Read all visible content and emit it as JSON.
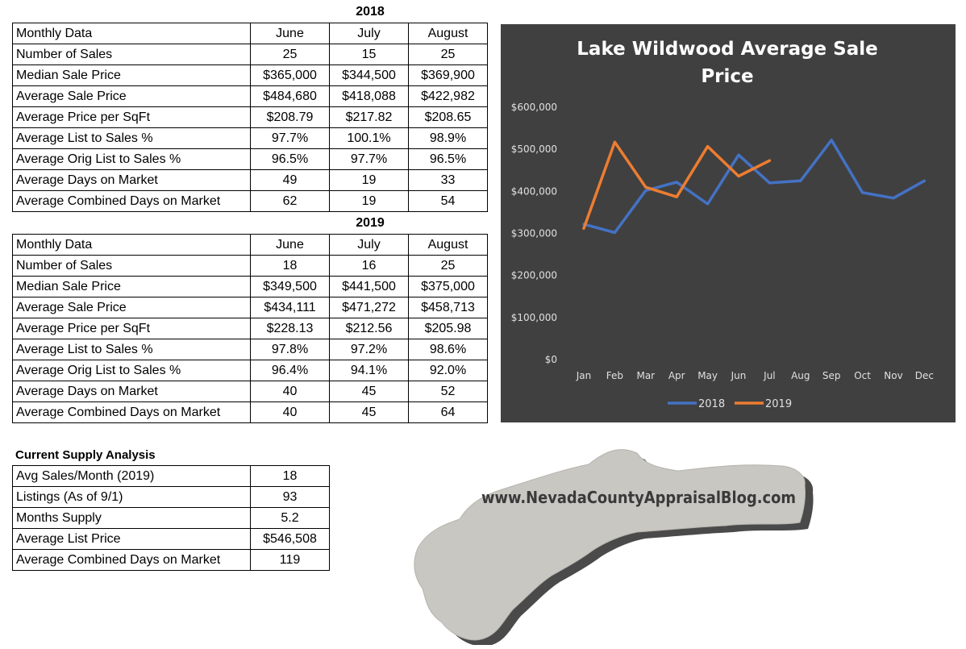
{
  "tables": {
    "t2018": {
      "year": "2018",
      "headers": [
        "Monthly Data",
        "June",
        "July",
        "August"
      ],
      "rows": [
        [
          "Number of Sales",
          "25",
          "15",
          "25"
        ],
        [
          "Median Sale Price",
          "$365,000",
          "$344,500",
          "$369,900"
        ],
        [
          "Average Sale Price",
          "$484,680",
          "$418,088",
          "$422,982"
        ],
        [
          "Average Price per SqFt",
          "$208.79",
          "$217.82",
          "$208.65"
        ],
        [
          "Average List to Sales %",
          "97.7%",
          "100.1%",
          "98.9%"
        ],
        [
          "Average Orig List to Sales %",
          "96.5%",
          "97.7%",
          "96.5%"
        ],
        [
          "Average Days on Market",
          "49",
          "19",
          "33"
        ],
        [
          "Average Combined Days on Market",
          "62",
          "19",
          "54"
        ]
      ]
    },
    "t2019": {
      "year": "2019",
      "headers": [
        "Monthly Data",
        "June",
        "July",
        "August"
      ],
      "rows": [
        [
          "Number of Sales",
          "18",
          "16",
          "25"
        ],
        [
          "Median Sale Price",
          "$349,500",
          "$441,500",
          "$375,000"
        ],
        [
          "Average Sale Price",
          "$434,111",
          "$471,272",
          "$458,713"
        ],
        [
          "Average Price per SqFt",
          "$228.13",
          "$212.56",
          "$205.98"
        ],
        [
          "Average List to Sales %",
          "97.8%",
          "97.2%",
          "98.6%"
        ],
        [
          "Average Orig List to Sales %",
          "96.4%",
          "94.1%",
          "92.0%"
        ],
        [
          "Average Days on Market",
          "40",
          "45",
          "52"
        ],
        [
          "Average Combined Days on Market",
          "40",
          "45",
          "64"
        ]
      ]
    },
    "supply": {
      "title": "Current Supply Analysis",
      "rows": [
        [
          "Avg Sales/Month (2019)",
          "18"
        ],
        [
          "Listings (As of 9/1)",
          "93"
        ],
        [
          "Months Supply",
          "5.2"
        ],
        [
          "Average List Price",
          "$546,508"
        ],
        [
          "Average Combined Days on Market",
          "119"
        ]
      ]
    }
  },
  "logo": {
    "text": "www.NevadaCountyAppraisalBlog.com"
  },
  "chart_data": {
    "type": "line",
    "title": "Lake Wildwood Average Sale Price",
    "categories": [
      "Jan",
      "Feb",
      "Mar",
      "Apr",
      "May",
      "Jun",
      "Jul",
      "Aug",
      "Sep",
      "Oct",
      "Nov",
      "Dec"
    ],
    "series": [
      {
        "name": "2018",
        "color": "#4472C4",
        "values": [
          320000,
          300000,
          400000,
          420000,
          368000,
          484680,
          418088,
          422982,
          520000,
          395000,
          382000,
          423000
        ]
      },
      {
        "name": "2019",
        "color": "#ED7D31",
        "values": [
          310000,
          515000,
          408000,
          385000,
          505000,
          434111,
          471272,
          null,
          null,
          null,
          null,
          null
        ]
      }
    ],
    "yticks": [
      "$0",
      "$100,000",
      "$200,000",
      "$300,000",
      "$400,000",
      "$500,000",
      "$600,000"
    ],
    "ylim": [
      0,
      600000
    ],
    "grid": false,
    "legend": "bottom",
    "background": "#404040"
  }
}
